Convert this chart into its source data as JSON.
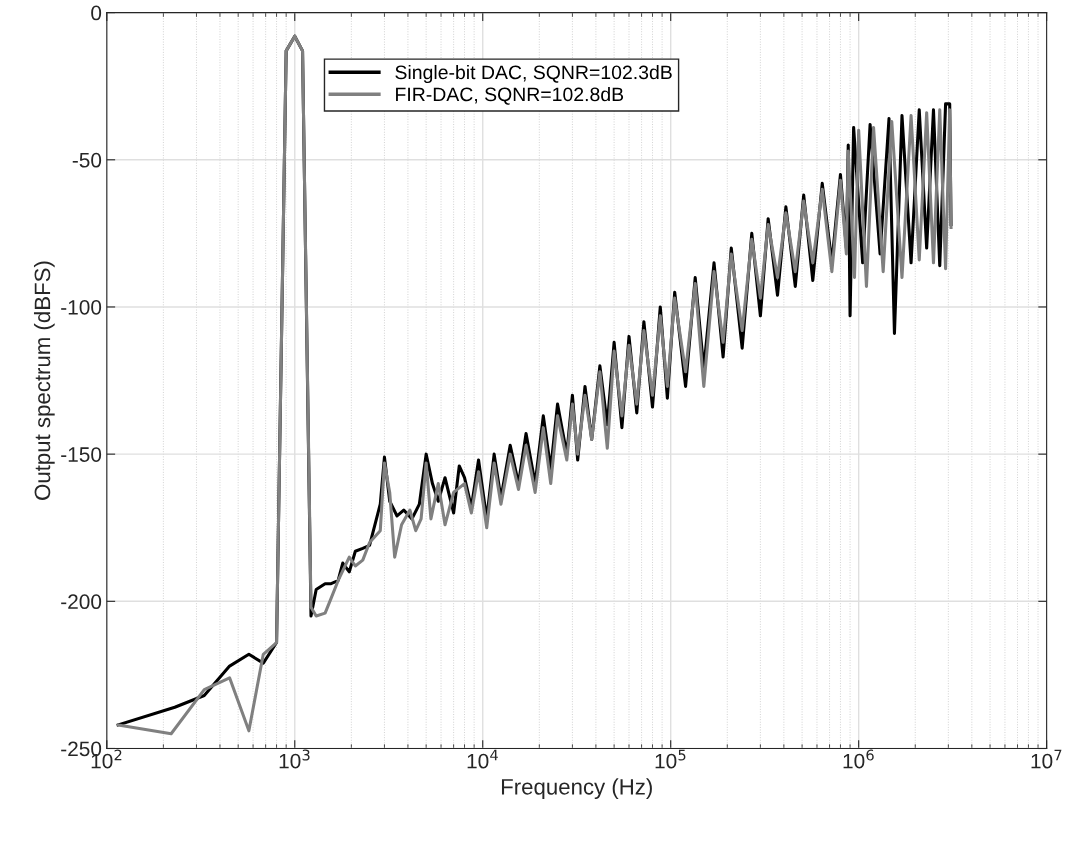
{
  "chart_data": {
    "type": "line",
    "xlabel": "Frequency (Hz)",
    "ylabel": "Output spectrum (dBFS)",
    "log": "x",
    "grid": true,
    "legend": "top",
    "line_style": "solid",
    "marker": "none",
    "xlim": [
      100,
      10000000
    ],
    "ylim": [
      -250,
      0
    ],
    "xticks": [
      {
        "value": 100,
        "label": "10$^{2}$"
      },
      {
        "value": 1000,
        "label": "10$^{3}$"
      },
      {
        "value": 10000,
        "label": "10$^{4}$"
      },
      {
        "value": 100000,
        "label": "10$^{5}$"
      },
      {
        "value": 1000000,
        "label": "10$^{6}$"
      },
      {
        "value": 10000000,
        "label": "10$^{7}$"
      }
    ],
    "yticks": [
      -250,
      -200,
      -150,
      -100,
      -50,
      0
    ],
    "series": [
      {
        "name": "Single-bit DAC, SQNR=102.3dB",
        "color": "#000000",
        "x": [
          115,
          230,
          330,
          450,
          570,
          680,
          800,
          900,
          1000,
          1100,
          1220,
          1300,
          1450,
          1560,
          1700,
          1800,
          1950,
          2100,
          2300,
          2500,
          2850,
          3000,
          3200,
          3500,
          3800,
          4200,
          4600,
          5000,
          5400,
          5800,
          6300,
          7000,
          7500,
          8000,
          8700,
          9500,
          10500,
          11500,
          12500,
          14000,
          15500,
          17000,
          19000,
          21000,
          23000,
          25000,
          28000,
          30000,
          32000,
          35000,
          38000,
          42000,
          46000,
          50000,
          55000,
          60000,
          66000,
          72000,
          80000,
          88000,
          96000,
          105000,
          120000,
          135000,
          150000,
          170000,
          190000,
          210000,
          240000,
          270000,
          300000,
          330000,
          370000,
          410000,
          460000,
          510000,
          570000,
          640000,
          720000,
          800000,
          860000,
          880000,
          900000,
          940000,
          1050000,
          1150000,
          1300000,
          1450000,
          1550000,
          1700000,
          1900000,
          2100000,
          2300000,
          2500000,
          2700000,
          2900000,
          3050000,
          3100000
        ],
        "values": [
          -242,
          -236,
          -232,
          -222,
          -218,
          -221,
          -214,
          -13,
          -8,
          -13,
          -205,
          -196,
          -194,
          -194,
          -193,
          -187,
          -190,
          -183,
          -182,
          -181,
          -167,
          -151,
          -166,
          -171,
          -169,
          -172,
          -167,
          -150,
          -160,
          -166,
          -158,
          -170,
          -154,
          -158,
          -168,
          -152,
          -172,
          -150,
          -165,
          -147,
          -160,
          -143,
          -160,
          -137,
          -155,
          -133,
          -150,
          -130,
          -152,
          -127,
          -145,
          -120,
          -140,
          -112,
          -141,
          -110,
          -136,
          -105,
          -134,
          -100,
          -131,
          -95,
          -127,
          -90,
          -121,
          -85,
          -117,
          -80,
          -114,
          -75,
          -103,
          -70,
          -96,
          -66,
          -93,
          -62,
          -91,
          -58,
          -85,
          -55,
          -80,
          -45,
          -103,
          -39,
          -85,
          -38,
          -82,
          -36,
          -109,
          -35,
          -85,
          -33,
          -80,
          -33,
          -86,
          -31,
          -31,
          -72
        ]
      },
      {
        "name": "FIR-DAC, SQNR=102.8dB",
        "color": "#808080",
        "x": [
          115,
          220,
          330,
          450,
          570,
          680,
          800,
          900,
          1000,
          1100,
          1220,
          1300,
          1450,
          1560,
          1700,
          1950,
          2100,
          2300,
          2500,
          2850,
          3000,
          3200,
          3400,
          3700,
          4100,
          4400,
          4700,
          5000,
          5300,
          5800,
          6300,
          7000,
          8000,
          8700,
          9500,
          10500,
          11500,
          12500,
          14000,
          15500,
          17000,
          19000,
          21000,
          23000,
          25000,
          28000,
          30000,
          32000,
          35000,
          38000,
          42000,
          46000,
          50000,
          55000,
          60000,
          66000,
          72000,
          80000,
          88000,
          96000,
          105000,
          120000,
          135000,
          150000,
          170000,
          190000,
          210000,
          240000,
          270000,
          300000,
          330000,
          370000,
          410000,
          460000,
          510000,
          570000,
          640000,
          720000,
          800000,
          860000,
          880000,
          950000,
          1000000,
          1100000,
          1200000,
          1350000,
          1500000,
          1700000,
          1900000,
          2100000,
          2300000,
          2500000,
          2700000,
          2900000,
          3050000,
          3100000
        ],
        "values": [
          -242,
          -245,
          -230,
          -226,
          -244,
          -218,
          -214,
          -13,
          -8,
          -13,
          -202,
          -205,
          -204,
          -199,
          -193,
          -185,
          -188,
          -186,
          -180,
          -176,
          -153,
          -163,
          -185,
          -174,
          -169,
          -176,
          -172,
          -153,
          -172,
          -160,
          -174,
          -163,
          -160,
          -170,
          -156,
          -175,
          -153,
          -167,
          -150,
          -162,
          -147,
          -163,
          -141,
          -160,
          -137,
          -152,
          -133,
          -150,
          -130,
          -145,
          -122,
          -148,
          -115,
          -137,
          -113,
          -133,
          -108,
          -130,
          -103,
          -127,
          -97,
          -122,
          -92,
          -127,
          -88,
          -112,
          -82,
          -108,
          -77,
          -97,
          -72,
          -90,
          -68,
          -88,
          -64,
          -85,
          -60,
          -88,
          -57,
          -82,
          -47,
          -90,
          -40,
          -93,
          -39,
          -88,
          -37,
          -90,
          -35,
          -84,
          -34,
          -85,
          -33,
          -87,
          -33,
          -73
        ]
      }
    ]
  }
}
